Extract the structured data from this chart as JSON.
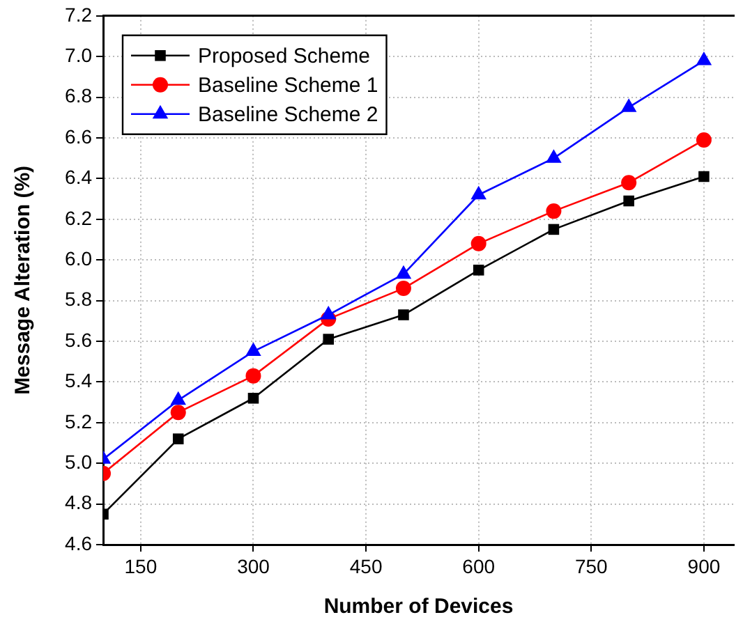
{
  "chart_data": {
    "type": "line",
    "xlabel": "Number of Devices",
    "ylabel": "Message Alteration (%)",
    "x": [
      100,
      200,
      300,
      400,
      500,
      600,
      700,
      800,
      900
    ],
    "series": [
      {
        "name": "Proposed Scheme",
        "color": "#000000",
        "marker": "square",
        "values": [
          4.75,
          5.12,
          5.32,
          5.61,
          5.73,
          5.95,
          6.15,
          6.29,
          6.41
        ]
      },
      {
        "name": "Baseline Scheme 1",
        "color": "#ff0000",
        "marker": "circle",
        "values": [
          4.95,
          5.25,
          5.43,
          5.71,
          5.86,
          6.08,
          6.24,
          6.38,
          6.59
        ]
      },
      {
        "name": "Baseline Scheme 2",
        "color": "#0000ff",
        "marker": "triangle",
        "values": [
          5.02,
          5.31,
          5.55,
          5.73,
          5.93,
          6.32,
          6.5,
          6.75,
          6.98
        ]
      }
    ],
    "xlim": [
      100,
      940
    ],
    "xticks": [
      150,
      300,
      450,
      600,
      750,
      900
    ],
    "ylim": [
      4.6,
      7.2
    ],
    "yticks": [
      4.6,
      4.8,
      {
        "value": 5,
        "label": "5.0"
      },
      5.2,
      5.4,
      5.6,
      5.8,
      {
        "value": 6,
        "label": "6.0"
      },
      6.2,
      6.4,
      6.6,
      6.8,
      {
        "value": 7,
        "label": "7.0"
      },
      7.2
    ],
    "grid": true,
    "legend": "top left",
    "line_style": "solid"
  }
}
